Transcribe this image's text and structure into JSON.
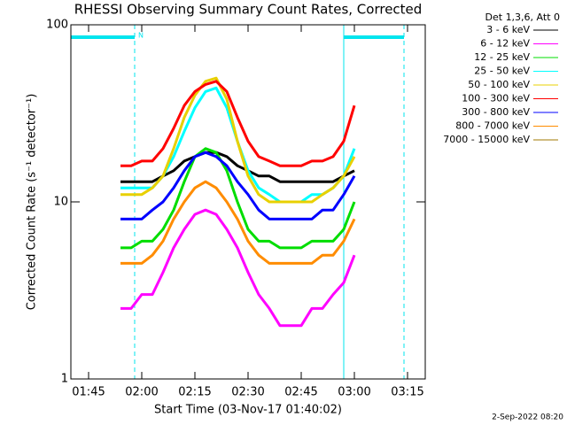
{
  "chart_data": {
    "type": "line",
    "title": "RHESSI Observing Summary Count Rates, Corrected",
    "xlabel": "Start Time (03-Nov-17 01:40:02)",
    "ylabel": "Corrected Count Rate (s⁻¹ detector⁻¹)",
    "legend_title": "Det 1,3,6, Att 0",
    "legend": "right",
    "footer": "2-Sep-2022 08:20",
    "log_y": true,
    "xlim": [
      "01:40",
      "03:20"
    ],
    "xticks": [
      "01:45",
      "02:00",
      "02:15",
      "02:30",
      "02:45",
      "03:00",
      "03:15"
    ],
    "ylim": [
      1,
      100
    ],
    "yticks": [
      1,
      10,
      100
    ],
    "markers": [
      {
        "solid": "01:40",
        "dashed": "01:58",
        "label": "N",
        "color": "#00e5ee"
      },
      {
        "solid": "02:57",
        "dashed": "03:14",
        "color": "#00e5ee"
      }
    ],
    "x": [
      "01:54",
      "01:57",
      "02:00",
      "02:03",
      "02:06",
      "02:09",
      "02:12",
      "02:15",
      "02:18",
      "02:21",
      "02:24",
      "02:27",
      "02:30",
      "02:33",
      "02:36",
      "02:39",
      "02:42",
      "02:45",
      "02:48",
      "02:51",
      "02:54",
      "02:57",
      "03:00"
    ],
    "series": [
      {
        "name": "3 - 6 keV",
        "color": "#000000",
        "values": [
          13,
          13,
          13,
          13,
          14,
          15,
          17,
          18,
          19,
          19,
          18,
          16,
          15,
          14,
          14,
          13,
          13,
          13,
          13,
          13,
          13,
          14,
          15
        ]
      },
      {
        "name": "6 - 12 keV",
        "color": "#ff00ff",
        "values": [
          2.5,
          2.5,
          3,
          3,
          4,
          5.5,
          7,
          8.5,
          9,
          8.5,
          7,
          5.5,
          4,
          3,
          2.5,
          2,
          2,
          2,
          2.5,
          2.5,
          3,
          3.5,
          5
        ]
      },
      {
        "name": "12 - 25 keV",
        "color": "#00dd00",
        "values": [
          5.5,
          5.5,
          6,
          6,
          7,
          9,
          13,
          18,
          20,
          19,
          15,
          10,
          7,
          6,
          6,
          5.5,
          5.5,
          5.5,
          6,
          6,
          6,
          7,
          10
        ]
      },
      {
        "name": "25 - 50 keV",
        "color": "#00ffff",
        "values": [
          12,
          12,
          12,
          12,
          14,
          18,
          25,
          34,
          42,
          44,
          34,
          22,
          15,
          12,
          11,
          10,
          10,
          10,
          11,
          11,
          12,
          14,
          20
        ]
      },
      {
        "name": "50 - 100 keV",
        "color": "#e8d000",
        "values": [
          11,
          11,
          11,
          12,
          14,
          20,
          30,
          40,
          48,
          50,
          38,
          22,
          14,
          11,
          10,
          10,
          10,
          10,
          10,
          11,
          12,
          14,
          18
        ]
      },
      {
        "name": "100 - 300 keV",
        "color": "#ff0000",
        "values": [
          16,
          16,
          17,
          17,
          20,
          26,
          35,
          42,
          46,
          48,
          42,
          30,
          22,
          18,
          17,
          16,
          16,
          16,
          17,
          17,
          18,
          22,
          35
        ]
      },
      {
        "name": "300 - 800 keV",
        "color": "#0000ff",
        "values": [
          8,
          8,
          8,
          9,
          10,
          12,
          15,
          18,
          19,
          18,
          16,
          13,
          11,
          9,
          8,
          8,
          8,
          8,
          8,
          9,
          9,
          11,
          14
        ]
      },
      {
        "name": "800 - 7000 keV",
        "color": "#ff8c00",
        "values": [
          4.5,
          4.5,
          4.5,
          5,
          6,
          8,
          10,
          12,
          13,
          12,
          10,
          8,
          6,
          5,
          4.5,
          4.5,
          4.5,
          4.5,
          4.5,
          5,
          5,
          6,
          8
        ]
      },
      {
        "name": "7000 - 15000 keV",
        "color": "#a07800",
        "values": [
          null,
          null,
          null,
          null,
          null,
          null,
          null,
          null,
          null,
          null,
          null,
          null,
          null,
          null,
          null,
          null,
          null,
          null,
          null,
          null,
          null,
          null,
          null
        ]
      }
    ]
  }
}
